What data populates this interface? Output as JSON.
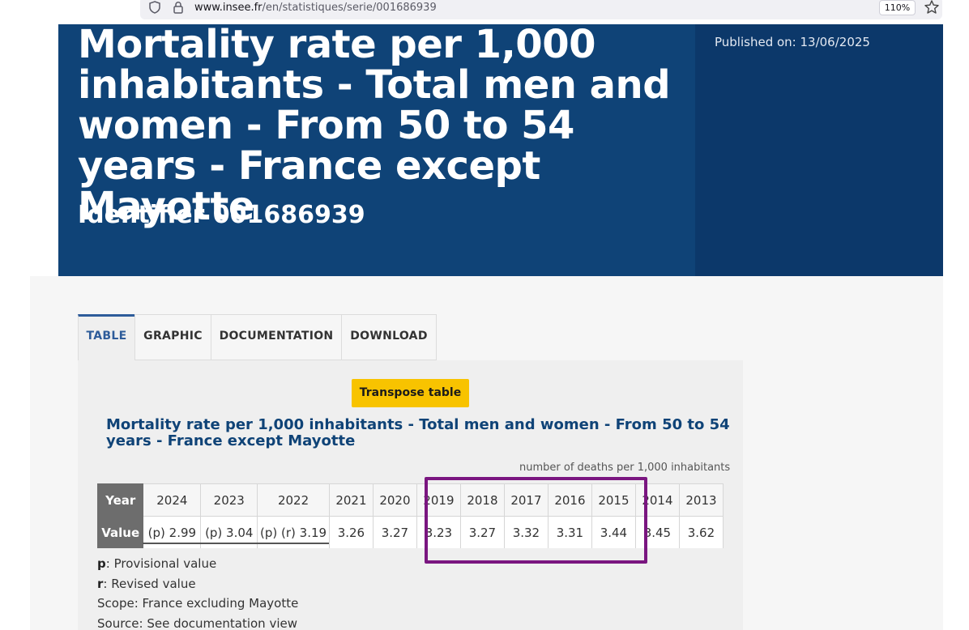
{
  "browser": {
    "url_domain": "www.insee.fr",
    "url_path": "/en/statistiques/serie/001686939",
    "zoom": "110%"
  },
  "header": {
    "title": "Mortality rate per 1,000 inhabitants - Total men and women - From 50 to 54 years - France except Mayotte",
    "identifier": "Identifier 001686939",
    "published": "Published on: 13/06/2025"
  },
  "tabs": [
    {
      "label": "TABLE",
      "active": true
    },
    {
      "label": "GRAPHIC",
      "active": false
    },
    {
      "label": "DOCUMENTATION",
      "active": false
    },
    {
      "label": "DOWNLOAD",
      "active": false
    }
  ],
  "table": {
    "transpose_label": "Transpose table",
    "title": "Mortality rate per 1,000 inhabitants - Total men and women - From 50 to 54 years - France except Mayotte",
    "unit": "number of deaths per 1,000 inhabitants",
    "row_headers": {
      "year": "Year",
      "value": "Value"
    },
    "years": [
      "2024",
      "2023",
      "2022",
      "2021",
      "2020",
      "2019",
      "2018",
      "2017",
      "2016",
      "2015",
      "2014",
      "2013"
    ],
    "values": [
      "(p) 2.99",
      "(p) 3.04",
      "(p) (r) 3.19",
      "3.26",
      "3.27",
      "3.23",
      "3.27",
      "3.32",
      "3.31",
      "3.44",
      "3.45",
      "3.62"
    ],
    "highlight_color": "#7a1680"
  },
  "notes": {
    "p_key": "p",
    "p_text": ": Provisional value",
    "r_key": "r",
    "r_text": ": Revised value",
    "scope": "Scope: France excluding Mayotte",
    "source": "Source: See documentation view"
  },
  "colors": {
    "banner": "#0f4377",
    "accent_button": "#f8c300"
  }
}
